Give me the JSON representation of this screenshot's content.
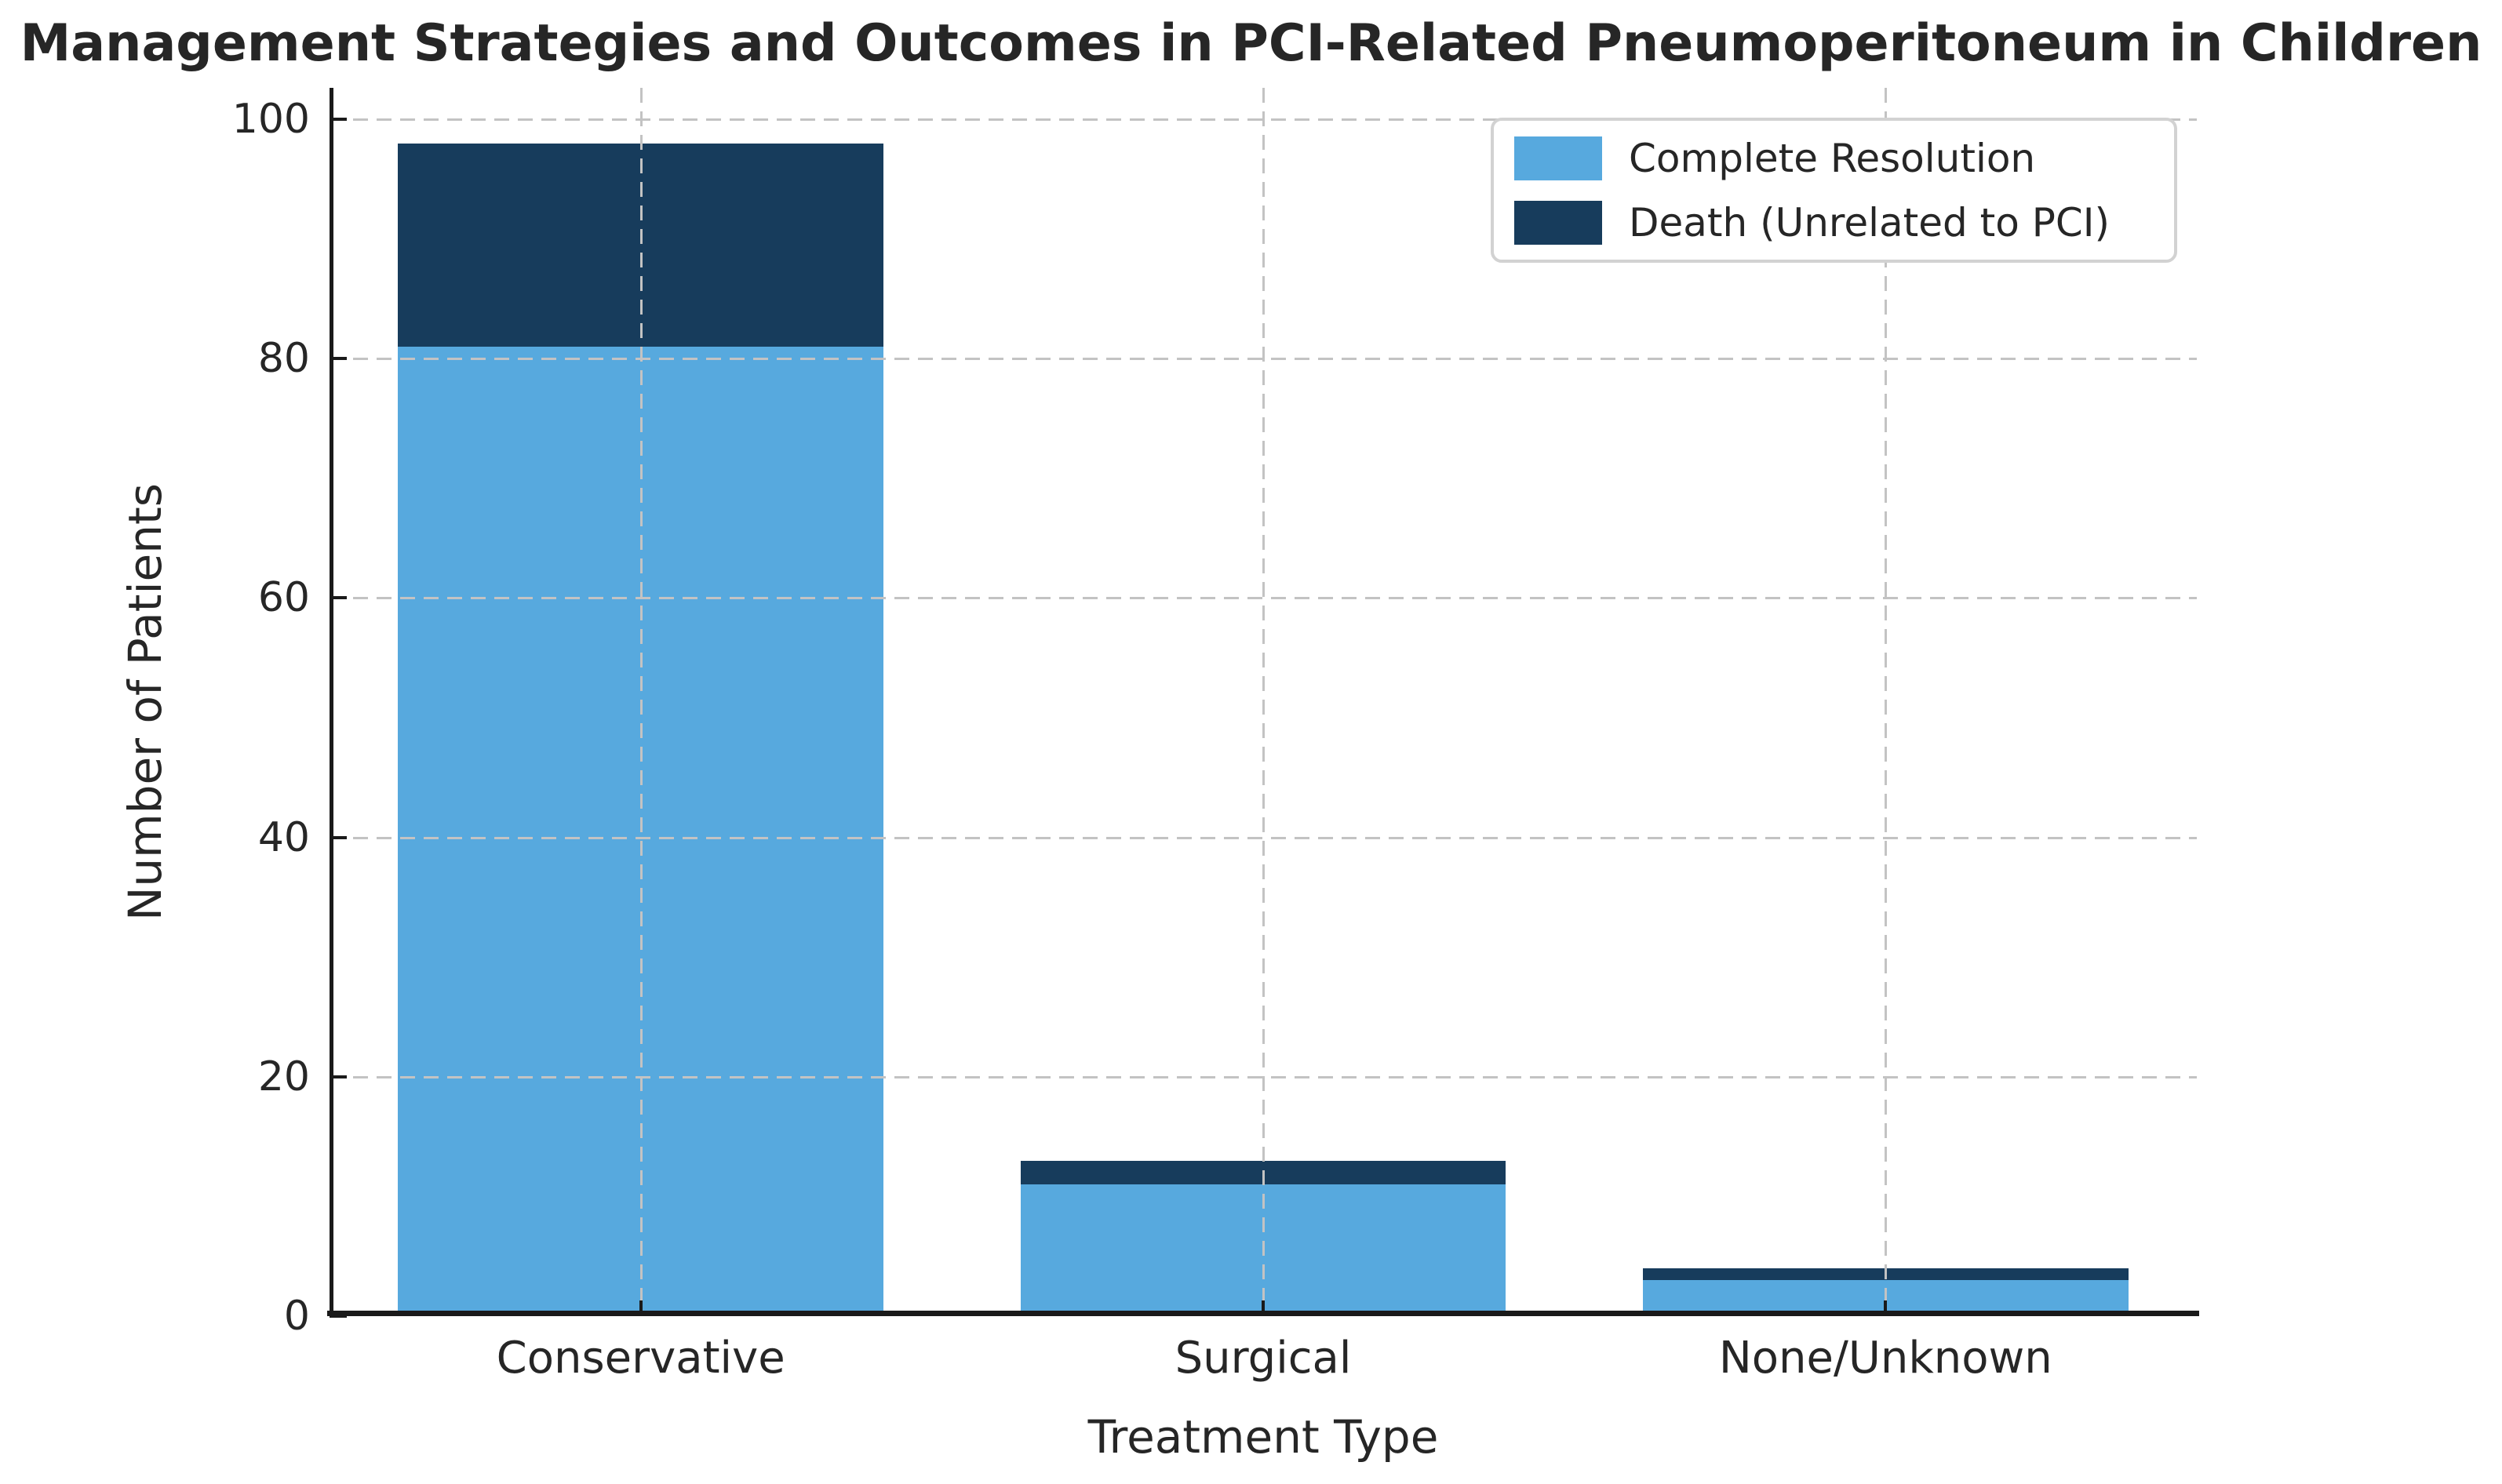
{
  "title": "Management Strategies and Outcomes in PCI-Related Pneumoperitoneum in Children",
  "chart_data": {
    "type": "bar",
    "stacked": true,
    "title": "Management Strategies and Outcomes in PCI-Related Pneumoperitoneum in Children",
    "categories": [
      "Conservative",
      "Surgical",
      "None/Unknown"
    ],
    "series": [
      {
        "name": "Complete Resolution",
        "color": "#57A9DE",
        "values": [
          81,
          11,
          3
        ]
      },
      {
        "name": "Death (Unrelated to PCI)",
        "color": "#173C5C",
        "values": [
          17,
          2,
          1
        ]
      }
    ],
    "totals": [
      98,
      13,
      4
    ],
    "xlabel": "Treatment Type",
    "ylabel": "Number of Patients",
    "ylim": [
      0,
      100
    ],
    "yticks": [
      0,
      20,
      40,
      60,
      80,
      100
    ],
    "grid": "dashed, drawn above bars",
    "legend_position": "upper right",
    "bar_width_fraction": 0.78
  },
  "colors": {
    "background": "#ffffff",
    "grid": "#c3c3c3",
    "spine": "#1a1a1a",
    "text": "#262626",
    "legend_border": "#d2d2d2"
  }
}
